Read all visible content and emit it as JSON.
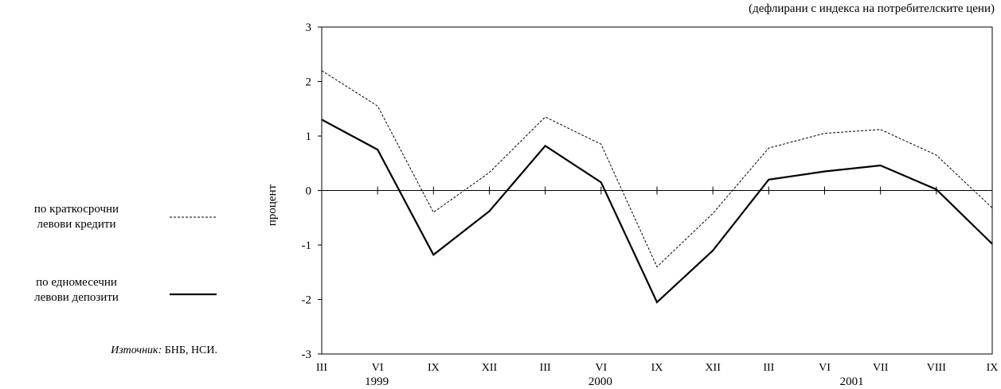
{
  "chart_data": {
    "type": "line",
    "title": "",
    "subtitle": "(дефлирани с индекса на потребителските цени)",
    "xlabel": "",
    "ylabel": "процент",
    "ylim": [
      -3,
      3
    ],
    "yticks": [
      "3",
      "2",
      "1",
      "0",
      "-1",
      "-2",
      "-3"
    ],
    "ytick_values": [
      3,
      2,
      1,
      0,
      -1,
      -2,
      -3
    ],
    "categories": [
      "III",
      "VI",
      "IX",
      "XII",
      "III",
      "VI",
      "IX",
      "XII",
      "III",
      "VI",
      "VII",
      "VIII",
      "IX"
    ],
    "years": [
      "1999",
      "2000",
      "2001"
    ],
    "series": [
      {
        "name": "по краткосрочни левови кредити",
        "style": "dashed",
        "values": [
          2.2,
          1.55,
          -0.4,
          0.33,
          1.35,
          0.85,
          -1.4,
          -0.42,
          0.78,
          1.05,
          1.12,
          0.65,
          -0.32
        ]
      },
      {
        "name": "по едномесечни левови депозити",
        "style": "solid",
        "values": [
          1.3,
          0.75,
          -1.18,
          -0.38,
          0.82,
          0.15,
          -2.05,
          -1.1,
          0.2,
          0.35,
          0.46,
          0.02,
          -0.98
        ]
      }
    ],
    "grid": false,
    "legend_position": "left",
    "colors": {
      "line": "#000000",
      "axis": "#000000"
    }
  },
  "legend": {
    "items": [
      {
        "line1": "по краткосрочни",
        "line2": "левови кредити"
      },
      {
        "line1": "по едномесечни",
        "line2": "левови депозити"
      }
    ]
  },
  "source": {
    "key": "Източник:",
    "value": "БНБ, НСИ."
  }
}
